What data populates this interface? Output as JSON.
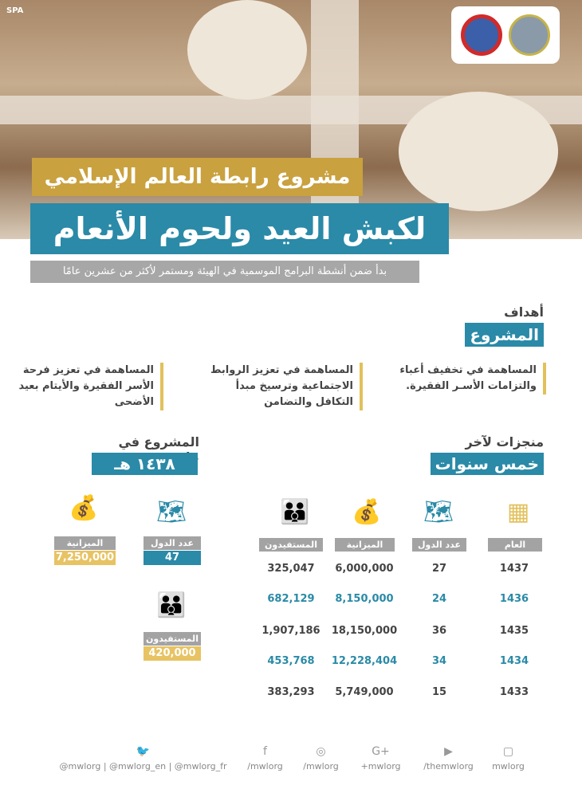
{
  "watermark": "SPA",
  "title_line1": "مشروع رابطة العالم الإسلامي",
  "title_line2": "لكبش العيد ولحوم الأنعام",
  "subtitle": "بدأ ضمن أنشطة البرامج الموسمية في الهيئة ومستمر لأكثر من عشرين عامًا",
  "goals": {
    "heading_small": "أهداف",
    "heading_box": "المشروع",
    "items": [
      "المساهمة في تخفيف أعباء والتزامات الأسـر الفقيرة.",
      "المساهمة في تعزيز الروابط الاجتماعية وترسيخ مبدأ التكافل والتضامن",
      "المساهمة في تعزيز فرحة الأسر الفقيرة والأيتام بعيد الأضحى"
    ]
  },
  "achievements": {
    "heading_small": "منجزات لآخر",
    "heading_box": "خمس سنوات",
    "columns": [
      {
        "label": "العام",
        "icon": "calendar-icon"
      },
      {
        "label": "عدد الدول",
        "icon": "world-map-icon"
      },
      {
        "label": "الميزانية",
        "icon": "money-bag-icon"
      },
      {
        "label": "المستفيدون",
        "icon": "people-icon"
      }
    ],
    "rows": [
      {
        "year": "1437",
        "countries": "27",
        "budget": "6,000,000",
        "beneficiaries": "325,047",
        "highlight": false
      },
      {
        "year": "1436",
        "countries": "24",
        "budget": "8,150,000",
        "beneficiaries": "682,129",
        "highlight": true
      },
      {
        "year": "1435",
        "countries": "36",
        "budget": "18,150,000",
        "beneficiaries": "1,907,186",
        "highlight": false
      },
      {
        "year": "1434",
        "countries": "34",
        "budget": "12,228,404",
        "beneficiaries": "453,768",
        "highlight": true
      },
      {
        "year": "1433",
        "countries": "15",
        "budget": "5,749,000",
        "beneficiaries": "383,293",
        "highlight": false
      }
    ]
  },
  "current": {
    "heading_small": "المشروع في عام",
    "heading_box": "١٤٣٨ هـ",
    "countries_label": "عدد الدول",
    "countries": "47",
    "budget_label": "الميزانية",
    "budget": "7,250,000",
    "beneficiaries_label": "المستفيدون",
    "beneficiaries": "420,000"
  },
  "social": [
    {
      "icon": "twitter-icon",
      "text": "@mwlorg | @mwlorg_en | @mwlorg_fr"
    },
    {
      "icon": "facebook-icon",
      "text": "/mwlorg"
    },
    {
      "icon": "instagram-icon",
      "text": "/mwlorg"
    },
    {
      "icon": "google-plus-icon",
      "text": "+mwlorg"
    },
    {
      "icon": "youtube-icon",
      "text": "/themwlorg"
    },
    {
      "icon": "snapchat-icon",
      "text": "mwlorg"
    }
  ],
  "colors": {
    "teal": "#2a8aa7",
    "gold": "#c9a13f",
    "gray": "#a7a7a7"
  }
}
